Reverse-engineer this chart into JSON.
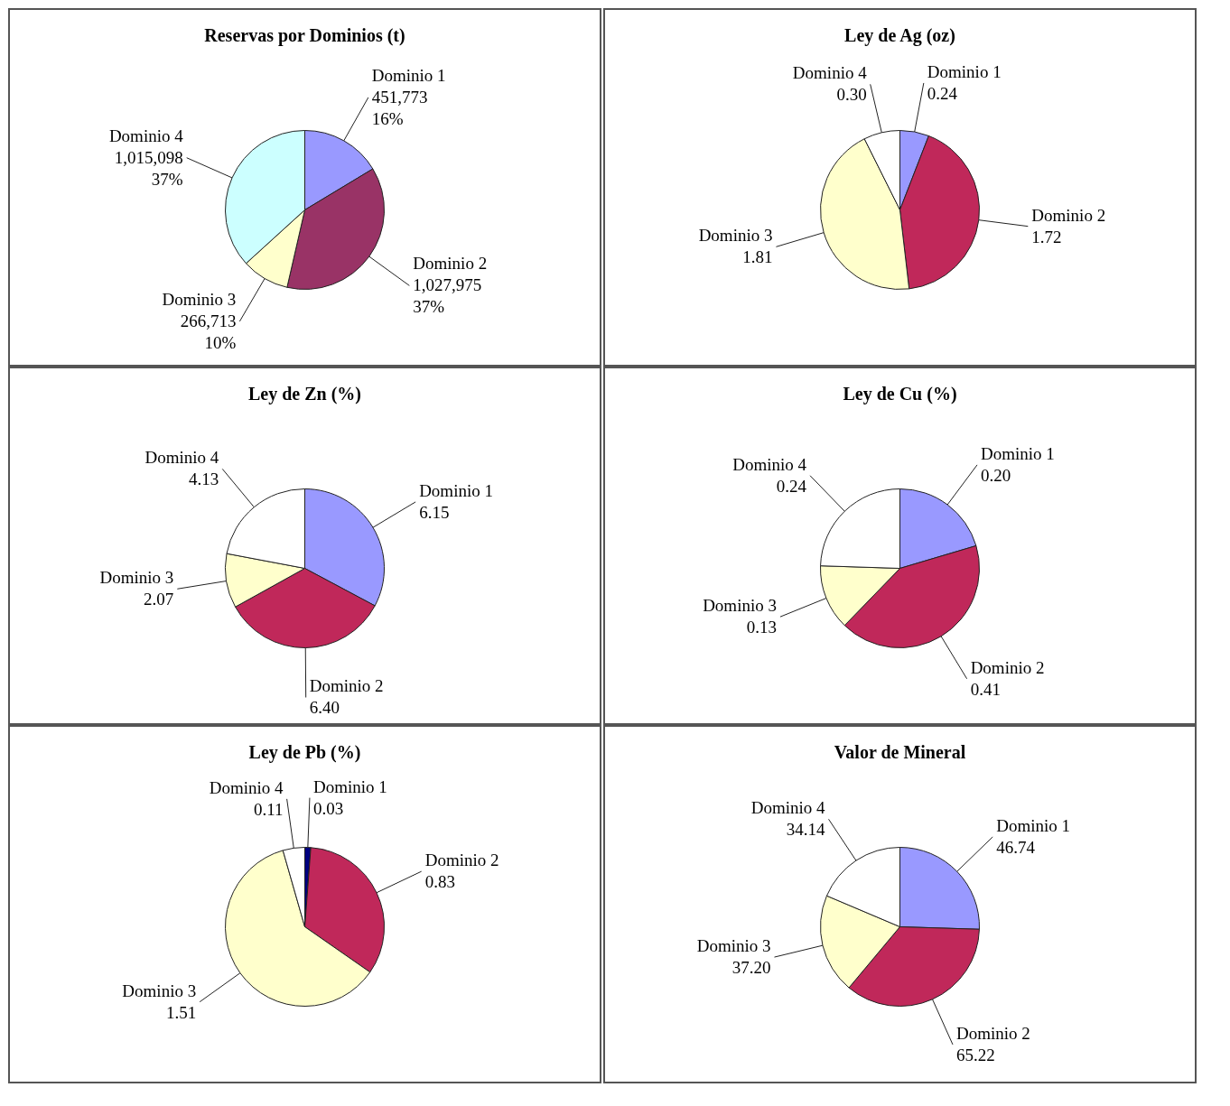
{
  "chart_data": [
    {
      "type": "pie",
      "title": "Reservas por Dominios (t)",
      "categories": [
        "Dominio 1",
        "Dominio 2",
        "Dominio 3",
        "Dominio 4"
      ],
      "values": [
        451773,
        1027975,
        266713,
        1015098
      ],
      "value_labels": [
        "451,773\n16%",
        "1,027,975\n37%",
        "266,713\n10%",
        "1,015,098\n37%"
      ],
      "colors": [
        "#9999ff",
        "#993366",
        "#ffffcc",
        "#ccffff"
      ]
    },
    {
      "type": "pie",
      "title": "Ley de Ag (oz)",
      "categories": [
        "Dominio 1",
        "Dominio 2",
        "Dominio 3",
        "Dominio 4"
      ],
      "values": [
        0.24,
        1.72,
        1.81,
        0.3
      ],
      "value_labels": [
        "0.24",
        "1.72",
        "1.81",
        "0.30"
      ],
      "colors": [
        "#9999ff",
        "#c0285a",
        "#ffffcc",
        "#ffffff"
      ]
    },
    {
      "type": "pie",
      "title": "Ley de Zn (%)",
      "categories": [
        "Dominio 1",
        "Dominio 2",
        "Dominio 3",
        "Dominio 4"
      ],
      "values": [
        6.15,
        6.4,
        2.07,
        4.13
      ],
      "value_labels": [
        "6.15",
        "6.40",
        "2.07",
        "4.13"
      ],
      "colors": [
        "#9999ff",
        "#c0285a",
        "#ffffcc",
        "#ffffff"
      ]
    },
    {
      "type": "pie",
      "title": "Ley de Cu (%)",
      "categories": [
        "Dominio 1",
        "Dominio 2",
        "Dominio 3",
        "Dominio 4"
      ],
      "values": [
        0.2,
        0.41,
        0.13,
        0.24
      ],
      "value_labels": [
        "0.20",
        "0.41",
        "0.13",
        "0.24"
      ],
      "colors": [
        "#9999ff",
        "#c0285a",
        "#ffffcc",
        "#ffffff"
      ]
    },
    {
      "type": "pie",
      "title": "Ley de Pb (%)",
      "categories": [
        "Dominio 1",
        "Dominio 2",
        "Dominio 3",
        "Dominio 4"
      ],
      "values": [
        0.03,
        0.83,
        1.51,
        0.11
      ],
      "value_labels": [
        "0.03",
        "0.83",
        "1.51",
        "0.11"
      ],
      "colors": [
        "#000080",
        "#c0285a",
        "#ffffcc",
        "#ffffff"
      ]
    },
    {
      "type": "pie",
      "title": "Valor de Mineral",
      "categories": [
        "Dominio 1",
        "Dominio 2",
        "Dominio 3",
        "Dominio 4"
      ],
      "values": [
        46.74,
        65.22,
        37.2,
        34.14
      ],
      "value_labels": [
        "46.74",
        "65.22",
        "37.20",
        "34.14"
      ],
      "colors": [
        "#9999ff",
        "#c0285a",
        "#ffffcc",
        "#ffffff"
      ]
    }
  ]
}
